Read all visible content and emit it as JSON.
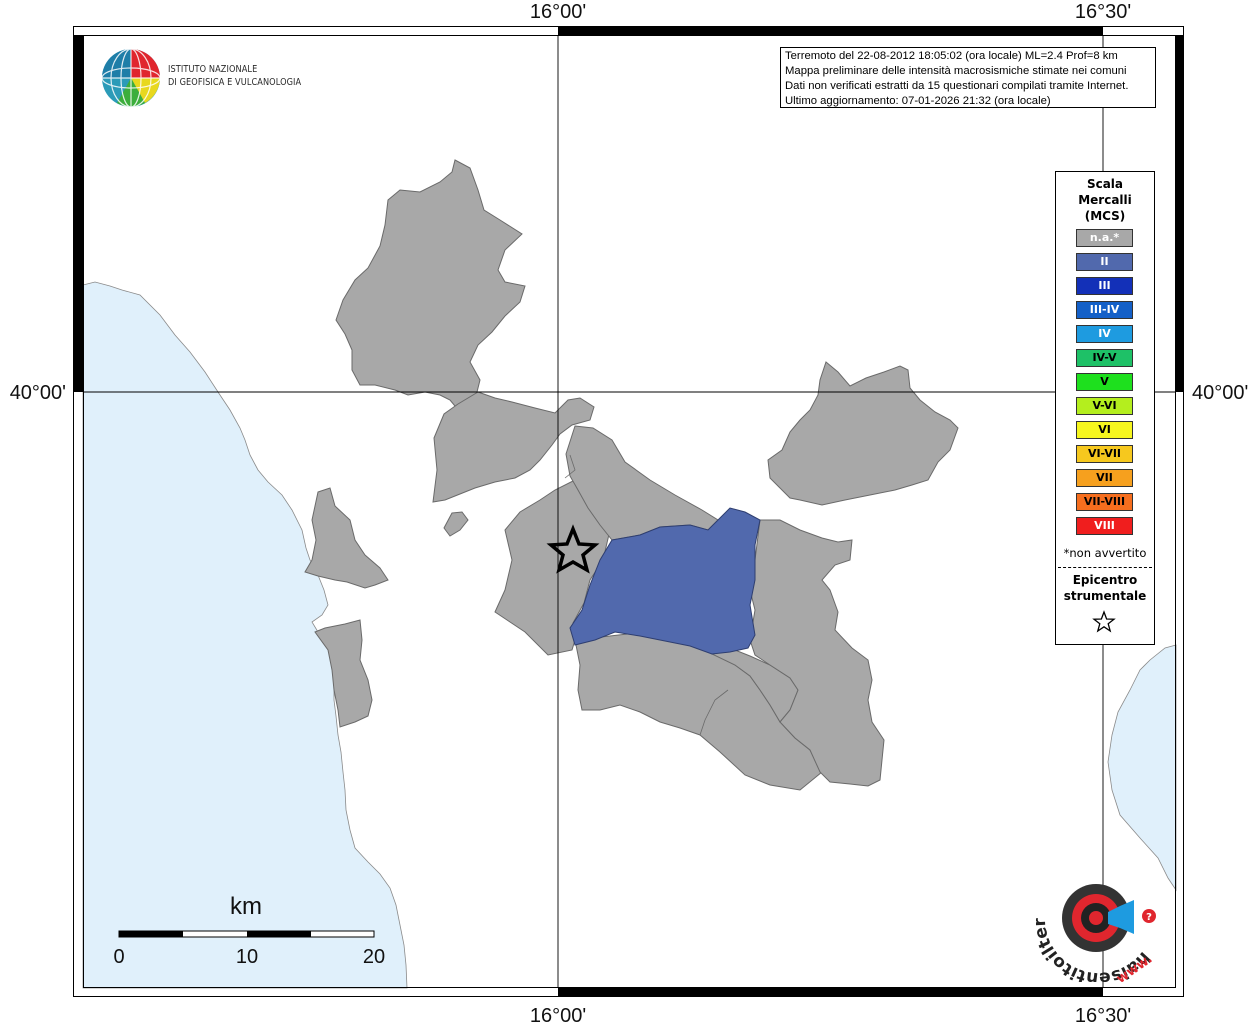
{
  "map": {
    "coords": {
      "top_left": "16°00'",
      "top_right": "16°30'",
      "bottom_left": "16°00'",
      "bottom_right": "16°30'",
      "left_lat": "40°00'",
      "right_lat": "40°00'"
    },
    "scale_bar": {
      "unit": "km",
      "ticks": [
        "0",
        "10",
        "20"
      ]
    },
    "colors": {
      "sea": "#e0f0fb",
      "land": "#ffffff",
      "not_felt": "#a8a8a8",
      "intensity_II": "#5169ad"
    },
    "epicenter_icon": "star-icon"
  },
  "info": {
    "line1": "Terremoto del 22-08-2012 18:05:02 (ora locale) ML=2.4 Prof=8 km",
    "line2": "Mappa preliminare delle intensità macrosismiche stimate nei comuni",
    "line3": "Dati non verificati estratti da 15 questionari compilati tramite Internet.",
    "line4": "Ultimo aggiornamento: 07-01-2026 21:32 (ora locale)"
  },
  "logo": {
    "line1": "ISTITUTO NAZIONALE",
    "line2": "DI GEOFISICA E VULCANOLOGIA",
    "icon": "ingv-globe-icon"
  },
  "legend": {
    "title1": "Scala",
    "title2": "Mercalli",
    "title3": "(MCS)",
    "items": [
      {
        "label": "n.a.*",
        "color": "#a8a8a8",
        "text": "#ffffff"
      },
      {
        "label": "II",
        "color": "#5169ad",
        "text": "#ffffff"
      },
      {
        "label": "III",
        "color": "#1330b8",
        "text": "#ffffff"
      },
      {
        "label": "III-IV",
        "color": "#1460c8",
        "text": "#ffffff"
      },
      {
        "label": "IV",
        "color": "#1e9be0",
        "text": "#ffffff"
      },
      {
        "label": "IV-V",
        "color": "#1ec167",
        "text": "#000000"
      },
      {
        "label": "V",
        "color": "#1ee01e",
        "text": "#000000"
      },
      {
        "label": "V-VI",
        "color": "#b4ee1e",
        "text": "#000000"
      },
      {
        "label": "VI",
        "color": "#f6f61e",
        "text": "#000000"
      },
      {
        "label": "VI-VII",
        "color": "#f6c81e",
        "text": "#000000"
      },
      {
        "label": "VII",
        "color": "#f6a01e",
        "text": "#000000"
      },
      {
        "label": "VII-VIII",
        "color": "#f66e1e",
        "text": "#000000"
      },
      {
        "label": "VIII",
        "color": "#f01e1e",
        "text": "#ffffff"
      }
    ],
    "note": "*non avvertito",
    "epicenter1": "Epicentro",
    "epicenter2": "strumentale"
  },
  "site_logo": {
    "text": "haisentitoilterremoto.it",
    "url_text": "www.",
    "icon": "megaphone-target-icon"
  }
}
